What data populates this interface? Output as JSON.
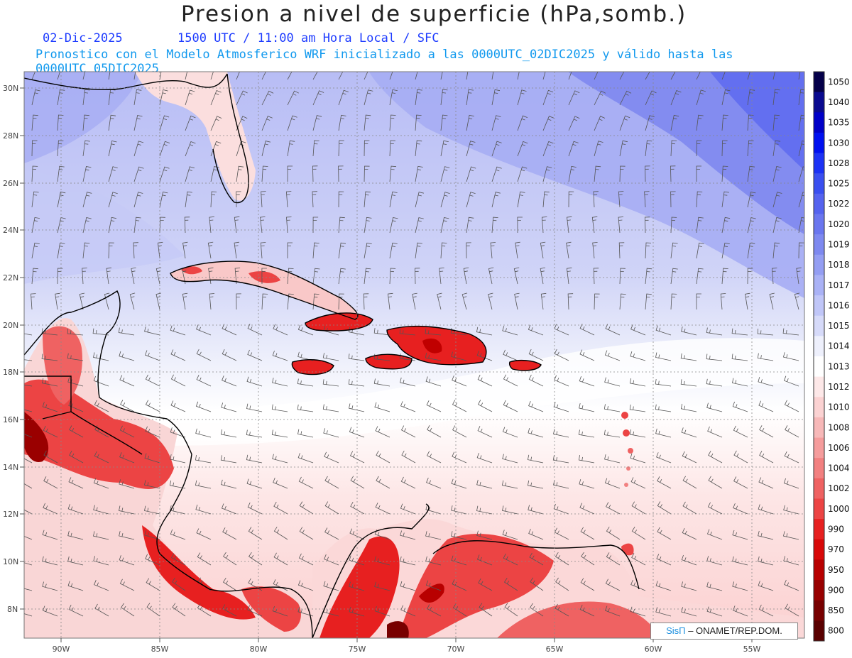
{
  "title": "Presion a nivel de superficie (hPa,somb.)",
  "subtitle": {
    "date": "02-Dic-2025",
    "time": "1500 UTC / 11:00 am Hora Local / SFC",
    "forecast": "Pronostico con el Modelo Atmosferico WRF inicializado a las 0000UTC_02DIC2025 y válido hasta las  0000UTC_05DIC2025"
  },
  "axes": {
    "lat_labels": [
      "30N",
      "28N",
      "26N",
      "24N",
      "22N",
      "20N",
      "18N",
      "16N",
      "14N",
      "12N",
      "10N",
      "8N"
    ],
    "lon_labels": [
      "90W",
      "85W",
      "80W",
      "75W",
      "70W",
      "65W",
      "60W",
      "55W"
    ]
  },
  "colorbar": {
    "levels": [
      "1050",
      "1040",
      "1035",
      "1030",
      "1028",
      "1025",
      "1022",
      "1020",
      "1019",
      "1018",
      "1017",
      "1016",
      "1015",
      "1014",
      "1013",
      "1012",
      "1010",
      "1008",
      "1006",
      "1004",
      "1002",
      "1000",
      "990",
      "970",
      "950",
      "900",
      "850",
      "800"
    ],
    "colors": [
      "#05004a",
      "#0a0a90",
      "#0000c8",
      "#0010f0",
      "#1c32f5",
      "#3a4ff0",
      "#5563ef",
      "#6a76ef",
      "#7e89f0",
      "#949ef3",
      "#aab2f6",
      "#c0c6f8",
      "#d6daf9",
      "#eef0fc",
      "#ffffff",
      "#fde8e8",
      "#fbd2d2",
      "#f7b8b8",
      "#f59c9c",
      "#f28080",
      "#ef6262",
      "#ec4444",
      "#e72020",
      "#d80808",
      "#b80000",
      "#980000",
      "#780000",
      "#5a0000"
    ]
  },
  "credit": {
    "brand": "SisΠ",
    "text": "– ONAMET/REP.DOM."
  }
}
